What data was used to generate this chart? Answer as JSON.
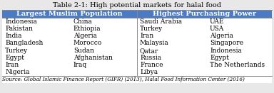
{
  "title": "Table 2-1: High potential markets for halal food",
  "header_left": "Largest Muslim Population",
  "header_right": "Highest Purchasing Power",
  "header_bg": "#4A7BC4",
  "header_fg": "#FFFFFF",
  "col1": [
    "Indonesia",
    "Pakistan",
    "India",
    "Bangladesh",
    "Turkey",
    "Egypt",
    "Iran",
    "Nigeria"
  ],
  "col2": [
    "China",
    "Ethiopia",
    "Algeria",
    "Morocco",
    "Sudan",
    "Afghanistan",
    "Iraq",
    ""
  ],
  "col3": [
    "Saudi Arabia",
    "Turkey",
    "Iran",
    "Malaysia",
    "Qatar",
    "Russia",
    "France",
    "Libya"
  ],
  "col4": [
    "UAE",
    "USA",
    "Algeria",
    "Singapore",
    "Indonesia",
    "Egypt",
    "The Netherlands",
    ""
  ],
  "source": "Source: Global Islamic Finance Report (GIFR) (2013), Halal Food Information Center (2016)",
  "bg_color": "#E8E8E8",
  "table_bg": "#FFFFFF",
  "border_color": "#888888",
  "title_fontsize": 7.0,
  "header_fontsize": 7.0,
  "data_fontsize": 6.5,
  "source_fontsize": 5.2,
  "fig_width": 3.84,
  "fig_height": 1.31,
  "dpi": 100
}
